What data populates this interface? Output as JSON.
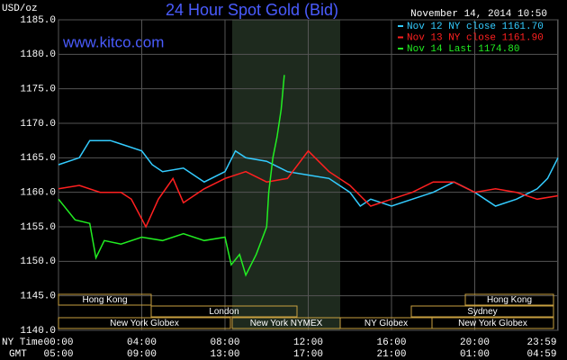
{
  "chart_data": {
    "type": "line",
    "title": "24 Hour Spot Gold (Bid)",
    "timestamp": "November 14, 2014 10:50",
    "y_axis_label": "USD/oz",
    "watermark": "www.kitco.com",
    "x_axis_label": "NY Time",
    "x2_axis_label": "GMT",
    "xlim": [
      0,
      24
    ],
    "xticks": [
      {
        "value": 0,
        "label": "00:00"
      },
      {
        "value": 4,
        "label": "04:00"
      },
      {
        "value": 8,
        "label": "08:00"
      },
      {
        "value": 12,
        "label": "12:00"
      },
      {
        "value": 16,
        "label": "16:00"
      },
      {
        "value": 20,
        "label": "20:00"
      },
      {
        "value": 23.98,
        "label": "23:59"
      }
    ],
    "x2ticks": [
      "05:00",
      "09:00",
      "13:00",
      "17:00",
      "21:00",
      "01:00",
      "04:59"
    ],
    "ylim": [
      1140,
      1185
    ],
    "yticks": [
      {
        "value": 1140,
        "label": "1140.0"
      },
      {
        "value": 1145,
        "label": "1145.0"
      },
      {
        "value": 1150,
        "label": "1150.0"
      },
      {
        "value": 1155,
        "label": "1155.0"
      },
      {
        "value": 1160,
        "label": "1160.0"
      },
      {
        "value": 1165,
        "label": "1165.0"
      },
      {
        "value": 1170,
        "label": "1170.0"
      },
      {
        "value": 1175,
        "label": "1175.0"
      },
      {
        "value": 1180,
        "label": "1180.0"
      },
      {
        "value": 1185,
        "label": "1185.0"
      }
    ],
    "grid": true,
    "sessions": [
      "Hong Kong",
      "Hong Kong",
      "London",
      "Sydney",
      "New York Globex",
      "New York NYMEX",
      "NY Globex",
      "New York Globex"
    ],
    "series": [
      {
        "name": "Nov 12 NY close 1161.70",
        "color": "#33ccff",
        "x": [
          0,
          1,
          1.5,
          2.5,
          3,
          4,
          4.5,
          5,
          6,
          7,
          8,
          8.5,
          9,
          10,
          11,
          12,
          13,
          14,
          14.5,
          15,
          16,
          17,
          18,
          19,
          20,
          21,
          22,
          23,
          23.5,
          24
        ],
        "values": [
          1164,
          1165,
          1167.5,
          1167.5,
          1167,
          1166,
          1164,
          1163,
          1163.5,
          1161.5,
          1163,
          1166,
          1165,
          1164.5,
          1163,
          1162.5,
          1162,
          1160,
          1158,
          1159,
          1158,
          1159,
          1160,
          1161.5,
          1160,
          1158,
          1159,
          1160.5,
          1162,
          1165
        ]
      },
      {
        "name": "Nov 13 NY close 1161.90",
        "color": "#ff2020",
        "x": [
          0,
          1,
          2,
          3,
          3.5,
          4.2,
          4.8,
          5.5,
          6,
          7,
          8,
          9,
          10,
          11,
          12,
          13,
          14,
          15,
          16,
          17,
          18,
          19,
          20,
          21,
          22,
          23,
          24
        ],
        "values": [
          1160.5,
          1161,
          1160,
          1160,
          1159,
          1155,
          1159,
          1162,
          1158.5,
          1160.5,
          1162,
          1163,
          1161.5,
          1162,
          1166,
          1163,
          1161,
          1158,
          1159,
          1160,
          1161.5,
          1161.5,
          1160,
          1160.5,
          1160,
          1159,
          1159.5
        ]
      },
      {
        "name": "Nov 14 Last 1174.80",
        "color": "#22ee22",
        "x": [
          0,
          0.8,
          1.5,
          1.8,
          2.2,
          3,
          4,
          5,
          6,
          7,
          8,
          8.3,
          8.7,
          9,
          9.5,
          10,
          10.1,
          10.3,
          10.5,
          10.7,
          10.85
        ],
        "values": [
          1159,
          1156,
          1155.5,
          1150.5,
          1153,
          1152.5,
          1153.5,
          1153,
          1154,
          1153,
          1153.5,
          1149.5,
          1151,
          1148,
          1151,
          1155,
          1160,
          1165,
          1168,
          1172,
          1177
        ]
      }
    ]
  }
}
